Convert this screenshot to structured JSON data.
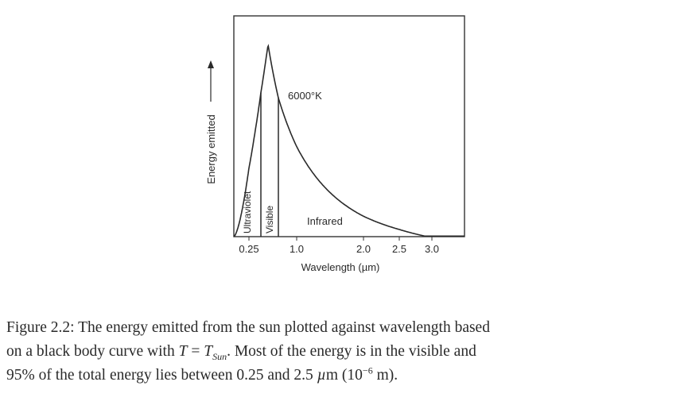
{
  "chart_data": {
    "type": "line",
    "xlabel": "Wavelength (µm)",
    "ylabel": "Energy emitted",
    "x_tick_labels": [
      "0.25",
      "1.0",
      "2.0",
      "2.5",
      "3.0"
    ],
    "x_ticks": [
      0.25,
      1.0,
      2.0,
      2.5,
      3.0
    ],
    "xlim": [
      0.0,
      3.4
    ],
    "ylim": [
      0,
      1.15
    ],
    "curve_label": "6000°K",
    "curve_peak_x": 0.48,
    "regions": [
      {
        "label": "Ultraviolet",
        "x_start": 0.0,
        "x_end": 0.4
      },
      {
        "label": "Visible",
        "x_start": 0.4,
        "x_end": 0.7
      },
      {
        "label": "Infrared",
        "x_start": 0.7,
        "x_end": 3.4
      }
    ],
    "grid": false,
    "legend": false
  },
  "caption": {
    "line1": "Figure 2.2: The energy emitted from the sun plotted against wavelength based",
    "line2_a": "on a black body curve with ",
    "line2_T": "T",
    "line2_eq": " = ",
    "line2_Tsun": "T",
    "line2_sun_sub": "Sun",
    "line2_b": ". Most of the energy is in the visible and",
    "line3_a": "95% of the total energy lies between 0.25 and 2.5 ",
    "line3_mu": "µ",
    "line3_b": "m (10",
    "line3_exp": "−6",
    "line3_c": " m)."
  }
}
